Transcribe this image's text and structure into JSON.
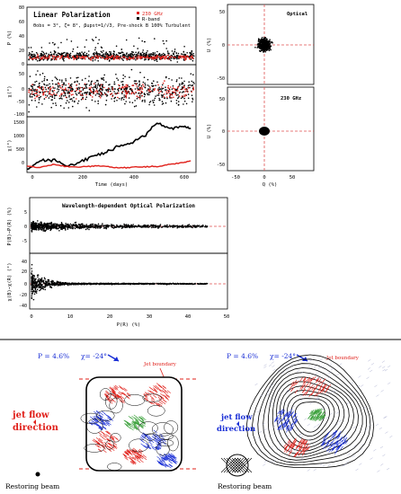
{
  "panel_a": {
    "title": "Linear Polarization",
    "legend_230": "230 GHz",
    "legend_r": "R-band",
    "params": "θobs = 3°, ζ= 8°, βupst=1/√3, Pre-shock B 100% Turbulent",
    "ylabel_p": "P (%)",
    "ylabel_chi": "χ(°)",
    "ylabel_chi2": "χ(°)",
    "xlabel": "Time (days)"
  },
  "panel_b": {
    "label_optical": "Optical",
    "label_230": "230 GHz",
    "ylabel_u": "U (%)",
    "ylabel_u2": "U (%)",
    "xlabel": "Q (%)"
  },
  "panel_c": {
    "title": "Wavelength-dependent Optical Polarization",
    "ylabel_top": "P(B)−P(R) (%)",
    "ylabel_bottom": "χ(B)−χ(R) (°)",
    "xlabel": "P(R) (%)"
  },
  "maps": {
    "left": {
      "p_text": "P = 4.6%",
      "chi_text": "χ= -24°",
      "jet_boundary": "Jet boundary",
      "flow_text_1": "jet flow",
      "flow_text_2": "direction",
      "beam_label": "Restoring beam"
    },
    "right": {
      "p_text": "P = 4.6%",
      "chi_text": "χ= -24°",
      "jet_boundary": "Jet boundary",
      "flow_text_1": "jet flow",
      "flow_text_2": "direction",
      "beam_label": "Restoring beam"
    }
  },
  "colors": {
    "series_230": "#e0201a",
    "series_r": "#000000",
    "ref_line": "#e05050",
    "annotation_blue": "#1a2fd6",
    "annotation_red": "#e0201a"
  },
  "chart_data": [
    {
      "type": "scatter",
      "title": "Linear Polarization",
      "xlabel": "Time (days)",
      "ylabel": "P (%)",
      "xlim": [
        0,
        650
      ],
      "ylim": [
        0,
        80
      ],
      "xticks": [
        0,
        200,
        400,
        600
      ],
      "yticks": [
        0,
        20,
        40,
        60,
        80
      ],
      "series": [
        {
          "name": "230 GHz",
          "x": [
            0,
            50,
            100,
            150,
            200,
            250,
            300,
            350,
            400,
            450,
            500,
            550,
            600,
            630
          ],
          "y": [
            9,
            11,
            8,
            12,
            10,
            7,
            11,
            9,
            12,
            10,
            8,
            11,
            9,
            10
          ]
        },
        {
          "name": "R-band",
          "x": [
            0,
            50,
            100,
            150,
            200,
            250,
            300,
            350,
            400,
            450,
            500,
            550,
            600,
            630
          ],
          "y": [
            12,
            16,
            10,
            20,
            14,
            9,
            15,
            12,
            18,
            13,
            10,
            14,
            12,
            15
          ]
        }
      ]
    },
    {
      "type": "scatter",
      "xlabel": "Time (days)",
      "ylabel": "χ(°)",
      "xlim": [
        0,
        650
      ],
      "ylim": [
        -100,
        100
      ],
      "yticks": [
        -100,
        -50,
        0,
        50
      ],
      "series": [
        {
          "name": "230 GHz",
          "x": [
            0,
            100,
            200,
            300,
            400,
            500,
            600
          ],
          "y": [
            0,
            10,
            -20,
            15,
            5,
            -10,
            20
          ]
        },
        {
          "name": "R-band",
          "x": [
            0,
            100,
            200,
            300,
            400,
            500,
            600
          ],
          "y": [
            10,
            -30,
            40,
            -50,
            20,
            -10,
            30
          ]
        }
      ]
    },
    {
      "type": "line",
      "xlabel": "Time (days)",
      "ylabel": "χ(°)",
      "xlim": [
        0,
        650
      ],
      "ylim": [
        -200,
        1500
      ],
      "xticks": [
        0,
        200,
        400,
        600
      ],
      "yticks": [
        0,
        500,
        1000,
        1500
      ],
      "series": [
        {
          "name": "R-band",
          "x": [
            0,
            50,
            100,
            150,
            200,
            250,
            300,
            350,
            400,
            450,
            500,
            550,
            600,
            630
          ],
          "y": [
            -100,
            150,
            200,
            0,
            100,
            300,
            400,
            600,
            700,
            900,
            1300,
            1150,
            1200,
            1150
          ]
        },
        {
          "name": "230 GHz",
          "x": [
            0,
            50,
            100,
            150,
            200,
            250,
            300,
            350,
            400,
            450,
            500,
            550,
            600,
            630
          ],
          "y": [
            0,
            -50,
            50,
            -20,
            -40,
            0,
            -10,
            -60,
            -40,
            -20,
            -30,
            50,
            100,
            150
          ]
        }
      ]
    },
    {
      "type": "scatter",
      "xlabel": "Q (%)",
      "ylabel": "U (%)",
      "xlim": [
        -70,
        70
      ],
      "ylim": [
        -60,
        60
      ],
      "yticks": [
        -50,
        0,
        50
      ],
      "series": [
        {
          "name": "Optical",
          "x": [
            0
          ],
          "y": [
            0
          ]
        }
      ]
    },
    {
      "type": "scatter",
      "xlabel": "Q (%)",
      "ylabel": "U (%)",
      "xlim": [
        -70,
        70
      ],
      "ylim": [
        -60,
        60
      ],
      "xticks": [
        -50,
        0,
        50
      ],
      "yticks": [
        -50,
        0,
        50
      ],
      "series": [
        {
          "name": "230 GHz",
          "x": [
            0
          ],
          "y": [
            0
          ]
        }
      ]
    },
    {
      "type": "scatter",
      "title": "Wavelength-dependent Optical Polarization",
      "xlabel": "P(R) (%)",
      "ylabel": "P(B)−P(R) (%)",
      "xlim": [
        0,
        50
      ],
      "ylim": [
        -10,
        10
      ],
      "yticks": [
        -5,
        0,
        5
      ],
      "series": [
        {
          "name": "",
          "x": [
            2,
            5,
            10,
            15,
            20,
            25,
            30,
            40
          ],
          "y": [
            0,
            0,
            0,
            0,
            0,
            0,
            0,
            0
          ]
        }
      ]
    },
    {
      "type": "scatter",
      "xlabel": "P(R) (%)",
      "ylabel": "χ(B)−χ(R) (°)",
      "xlim": [
        0,
        50
      ],
      "ylim": [
        -60,
        60
      ],
      "xticks": [
        0,
        10,
        20,
        30,
        40,
        50
      ],
      "yticks": [
        -40,
        -20,
        0,
        20,
        40
      ],
      "series": [
        {
          "name": "",
          "x": [
            1,
            2,
            5,
            10,
            20,
            30,
            40
          ],
          "y": [
            40,
            -30,
            10,
            0,
            0,
            0,
            0
          ]
        }
      ]
    }
  ]
}
